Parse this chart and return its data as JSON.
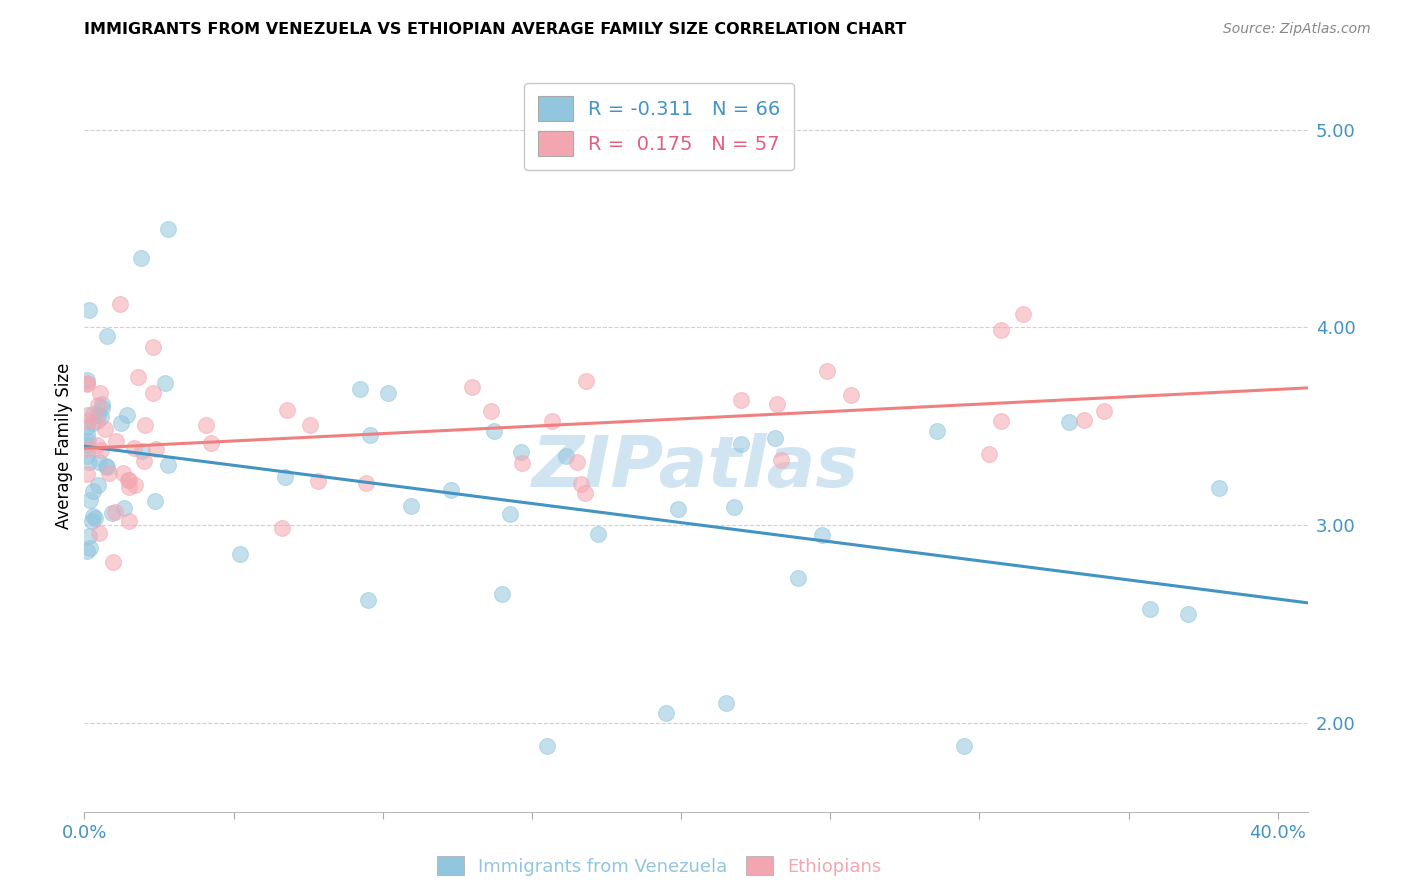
{
  "title": "IMMIGRANTS FROM VENEZUELA VS ETHIOPIAN AVERAGE FAMILY SIZE CORRELATION CHART",
  "source": "Source: ZipAtlas.com",
  "ylabel": "Average Family Size",
  "yticks": [
    2.0,
    3.0,
    4.0,
    5.0
  ],
  "xlim": [
    0.0,
    0.41
  ],
  "ylim": [
    1.55,
    5.25
  ],
  "legend_entry1_R": "-0.311",
  "legend_entry1_N": "66",
  "legend_entry2_R": "0.175",
  "legend_entry2_N": "57",
  "blue_color": "#92c5de",
  "pink_color": "#f4a6b0",
  "blue_line_color": "#4393c3",
  "pink_line_color": "#f08080",
  "ytick_color": "#4393c3",
  "xtick_color": "#4393c3",
  "watermark": "ZIPatlas",
  "watermark_color": "#c8e0f0",
  "grid_color": "#d0d0d0",
  "bottom_label1": "Immigrants from Venezuela",
  "bottom_label2": "Ethiopians"
}
